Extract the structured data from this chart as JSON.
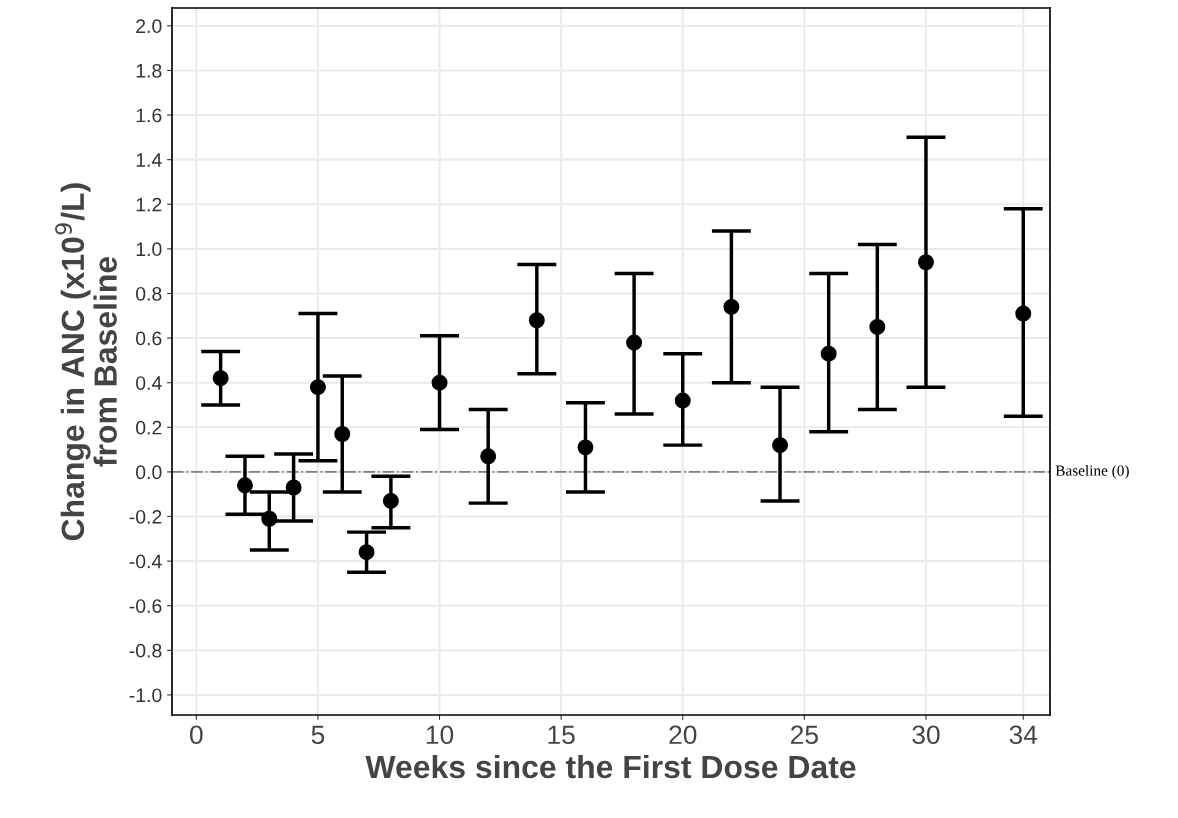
{
  "chart_data": {
    "type": "scatter",
    "xlabel": "Weeks since the First Dose Date",
    "ylabel": "Change in ANC (x10$^{9}$/L)\nfrom Baseline",
    "x": [
      1,
      2,
      3,
      4,
      5,
      6,
      7,
      8,
      10,
      12,
      14,
      16,
      18,
      20,
      22,
      24,
      26,
      28,
      30,
      34
    ],
    "series": [
      {
        "color": "#000000",
        "values": [
          0.42,
          -0.06,
          -0.21,
          -0.07,
          0.38,
          0.17,
          -0.36,
          -0.13,
          0.4,
          0.07,
          0.68,
          0.11,
          0.58,
          0.32,
          0.74,
          0.12,
          0.53,
          0.65,
          0.94,
          0.71
        ],
        "errors": [
          [
            0.3,
            0.54
          ],
          [
            -0.19,
            0.07
          ],
          [
            -0.35,
            -0.09
          ],
          [
            -0.22,
            0.08
          ],
          [
            0.05,
            0.71
          ],
          [
            -0.09,
            0.43
          ],
          [
            -0.45,
            -0.27
          ],
          [
            -0.25,
            -0.02
          ],
          [
            0.19,
            0.61
          ],
          [
            -0.14,
            0.28
          ],
          [
            0.44,
            0.93
          ],
          [
            -0.09,
            0.31
          ],
          [
            0.26,
            0.89
          ],
          [
            0.12,
            0.53
          ],
          [
            0.4,
            1.08
          ],
          [
            -0.13,
            0.38
          ],
          [
            0.18,
            0.89
          ],
          [
            0.28,
            1.02
          ],
          [
            0.38,
            1.5
          ],
          [
            0.25,
            1.18
          ]
        ]
      }
    ],
    "xlim": [
      -1,
      35.1
    ],
    "ylim": [
      -1.09,
      2.08
    ],
    "xticks": [
      0,
      5,
      10,
      15,
      20,
      25,
      30,
      34
    ],
    "yticks": [
      {
        "value": -1.0,
        "label": "-1.0"
      },
      {
        "value": -0.8,
        "label": "-0.8"
      },
      {
        "value": -0.6,
        "label": "-0.6"
      },
      {
        "value": -0.4,
        "label": "-0.4"
      },
      {
        "value": -0.2,
        "label": "-0.2"
      },
      {
        "value": 0.0,
        "label": "0.0"
      },
      {
        "value": 0.2,
        "label": "0.2"
      },
      {
        "value": 0.4,
        "label": "0.4"
      },
      {
        "value": 0.6,
        "label": "0.6"
      },
      {
        "value": 0.8,
        "label": "0.8"
      },
      {
        "value": 1.0,
        "label": "1.0"
      },
      {
        "value": 1.2,
        "label": "1.2"
      },
      {
        "value": 1.4,
        "label": "1.4"
      },
      {
        "value": 1.6,
        "label": "1.6"
      },
      {
        "value": 1.8,
        "label": "1.8"
      },
      {
        "value": 2.0,
        "label": "2.0"
      }
    ],
    "ref_lines": [
      {
        "axis": "y",
        "value": 0,
        "label": "Baseline (0)",
        "color": "#808080",
        "line_style": "dashdot"
      }
    ],
    "grid": true,
    "marker": "circle"
  }
}
